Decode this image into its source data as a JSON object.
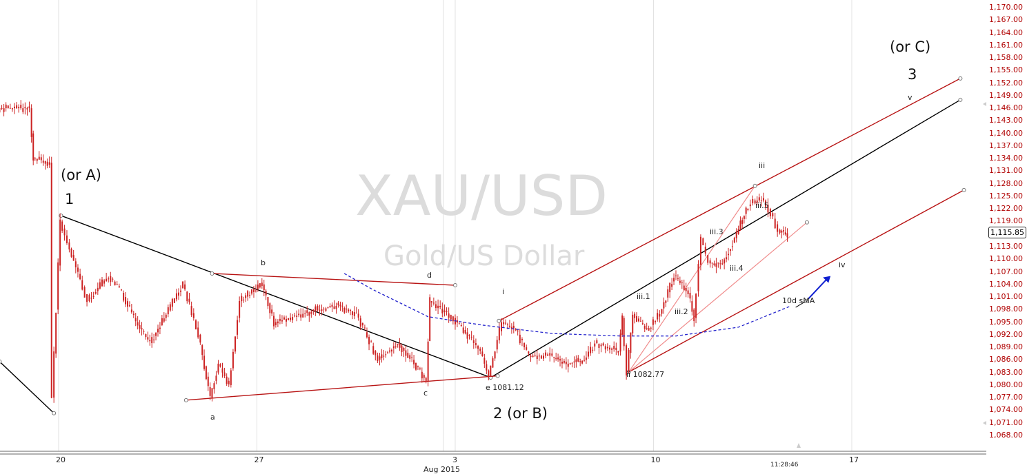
{
  "chart_data": {
    "type": "candlestick",
    "symbol_watermark": "XAU/USD",
    "name_watermark": "Gold/US Dollar",
    "ylim": [
      1068,
      1170
    ],
    "ytick_step": 3,
    "x_ticks": [
      {
        "date": "2015-07-20T00:00",
        "label": "20"
      },
      {
        "date": "2015-07-27T00:00",
        "label": "27"
      },
      {
        "date": "2015-08-03T00:00",
        "label": "3"
      },
      {
        "date": "2015-08-10T00:00",
        "label": "10"
      },
      {
        "date": "2015-08-17T00:00",
        "label": "17"
      }
    ],
    "x_month_label": "Aug 2015",
    "extra_gridline_date": "2015-08-02T14:00",
    "time_label": "11:28:46",
    "current_price": "1,115.85",
    "colors": {
      "candles": "#cc2222",
      "price_axis": "#b00000",
      "channel": "#b81414",
      "inner_channel": "#f08c8c",
      "sma": "#2222cc",
      "trend": "#000000",
      "arrow": "#1020d0"
    },
    "price_path": [
      [
        "2015-07-17T22:00",
        1146
      ],
      [
        "2015-07-19T01:00",
        1146
      ],
      [
        "2015-07-19T04:00",
        1134
      ],
      [
        "2015-07-19T18:00",
        1133
      ],
      [
        "2015-07-19T20:00",
        1077
      ],
      [
        "2015-07-20T03:00",
        1119
      ],
      [
        "2015-07-20T09:00",
        1114
      ],
      [
        "2015-07-20T20:00",
        1105
      ],
      [
        "2015-07-21T02:00",
        1100
      ],
      [
        "2015-07-21T20:00",
        1106
      ],
      [
        "2015-07-22T07:00",
        1102
      ],
      [
        "2015-07-22T19:00",
        1095
      ],
      [
        "2015-07-23T07:00",
        1090
      ],
      [
        "2015-07-23T19:00",
        1096
      ],
      [
        "2015-07-24T11:00",
        1104
      ],
      [
        "2015-07-25T00:00",
        1092
      ],
      [
        "2015-07-25T10:00",
        1077
      ],
      [
        "2015-07-25T17:00",
        1085
      ],
      [
        "2015-07-26T02:00",
        1080
      ],
      [
        "2015-07-26T11:00",
        1100
      ],
      [
        "2015-07-27T06:00",
        1104
      ],
      [
        "2015-07-27T16:00",
        1095
      ],
      [
        "2015-07-28T15:00",
        1097
      ],
      [
        "2015-07-29T21:00",
        1099
      ],
      [
        "2015-07-30T14:00",
        1097
      ],
      [
        "2015-07-31T08:00",
        1086
      ],
      [
        "2015-08-01T01:00",
        1090
      ],
      [
        "2015-08-01T13:00",
        1086
      ],
      [
        "2015-08-02T01:00",
        1081
      ],
      [
        "2015-08-02T04:00",
        1100
      ],
      [
        "2015-08-03T00:00",
        1096
      ],
      [
        "2015-08-03T12:00",
        1092
      ],
      [
        "2015-08-03T23:00",
        1088
      ],
      [
        "2015-08-04T06:00",
        1082
      ],
      [
        "2015-08-04T17:00",
        1095
      ],
      [
        "2015-08-05T05:00",
        1093
      ],
      [
        "2015-08-05T16:00",
        1087
      ],
      [
        "2015-08-06T10:00",
        1087
      ],
      [
        "2015-08-06T22:00",
        1085
      ],
      [
        "2015-08-07T15:00",
        1086
      ],
      [
        "2015-08-08T00:00",
        1090
      ],
      [
        "2015-08-08T20:00",
        1088
      ],
      [
        "2015-08-08T23:00",
        1096
      ],
      [
        "2015-08-09T03:00",
        1083
      ],
      [
        "2015-08-09T08:00",
        1097
      ],
      [
        "2015-08-09T20:00",
        1093
      ],
      [
        "2015-08-10T07:00",
        1097
      ],
      [
        "2015-08-10T19:00",
        1106
      ],
      [
        "2015-08-11T07:00",
        1102
      ],
      [
        "2015-08-11T12:00",
        1096
      ],
      [
        "2015-08-11T18:00",
        1115
      ],
      [
        "2015-08-12T00:00",
        1109
      ],
      [
        "2015-08-12T12:00",
        1109
      ],
      [
        "2015-08-13T00:00",
        1116
      ],
      [
        "2015-08-13T08:00",
        1122
      ],
      [
        "2015-08-13T14:00",
        1124
      ],
      [
        "2015-08-13T23:00",
        1124
      ],
      [
        "2015-08-14T05:00",
        1121
      ],
      [
        "2015-08-14T11:00",
        1117
      ],
      [
        "2015-08-14T19:00",
        1116
      ]
    ],
    "sma_10d": [
      [
        "2015-07-30T02:00",
        1106.6
      ],
      [
        "2015-07-31T02:00",
        1102.8
      ],
      [
        "2015-08-02T01:00",
        1096.3
      ],
      [
        "2015-08-03T23:00",
        1094.3
      ],
      [
        "2015-08-06T10:00",
        1092.3
      ],
      [
        "2015-08-08T20:00",
        1091.7
      ],
      [
        "2015-08-10T19:00",
        1091.7
      ],
      [
        "2015-08-13T00:00",
        1093.8
      ],
      [
        "2015-08-14T19:00",
        1098.7
      ]
    ],
    "trendlines": [
      {
        "color": "trend",
        "from": [
          "2015-07-17T22:00",
          1085.6
        ],
        "to": [
          "2015-07-19T20:00",
          1073.3
        ]
      },
      {
        "color": "trend",
        "from": [
          "2015-07-20T02:00",
          1120.4
        ],
        "to": [
          "2015-08-04T06:00",
          1081.8
        ]
      },
      {
        "color": "trend",
        "from": [
          "2015-08-04T06:00",
          1081.8
        ],
        "to": [
          "2015-08-20T20:00",
          1148.0
        ]
      },
      {
        "color": "channel",
        "from": [
          "2015-07-25T10:00",
          1106.6
        ],
        "to": [
          "2015-08-03T00:00",
          1103.8
        ]
      },
      {
        "color": "channel",
        "from": [
          "2015-07-24T12:00",
          1076.4
        ],
        "to": [
          "2015-08-04T12:00",
          1082.2
        ]
      },
      {
        "color": "channel",
        "from": [
          "2015-08-04T13:00",
          1095.3
        ],
        "to": [
          "2015-08-20T20:00",
          1153.1
        ]
      },
      {
        "color": "channel",
        "from": [
          "2015-08-09T03:00",
          1083.1
        ],
        "to": [
          "2015-08-20T23:00",
          1126.5
        ]
      },
      {
        "color": "inner_channel",
        "from": [
          "2015-08-09T03:00",
          1083.1
        ],
        "to": [
          "2015-08-15T10:00",
          1118.8
        ]
      },
      {
        "color": "inner_channel",
        "from": [
          "2015-08-09T03:00",
          1083.1
        ],
        "to": [
          "2015-08-13T14:00",
          1127.5
        ]
      }
    ],
    "arrow": {
      "from": [
        "2015-08-15T11:00",
        1100.5
      ],
      "to": [
        "2015-08-16T06:00",
        1106.0
      ]
    },
    "annotations": {
      "or_a": "(or A)",
      "one": "1",
      "a": "a",
      "b": "b",
      "c": "c",
      "d": "d",
      "e": "e 1081.12",
      "two": "2 (or B)",
      "i": "i",
      "ii": "ii  1082.77",
      "iii_1": "iii.1",
      "iii_2": "iii.2",
      "iii_3": "iii.3",
      "iii_4": "iii.4",
      "iii_5": "iii.5",
      "iii": "iii",
      "iv": "iv",
      "v": "v",
      "sma_label": "10d sMA",
      "or_c": "(or C)",
      "three": "3"
    }
  }
}
